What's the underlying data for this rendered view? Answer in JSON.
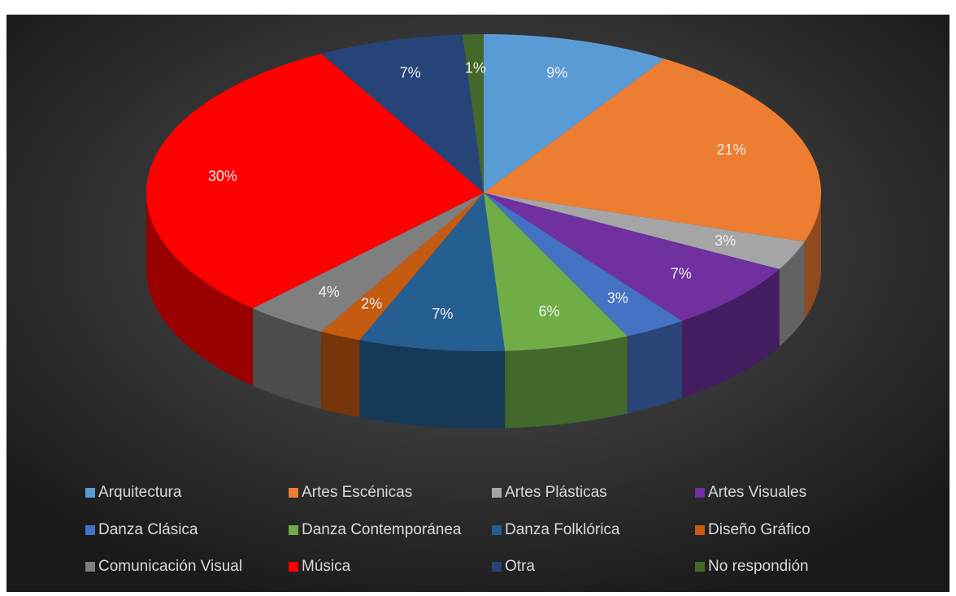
{
  "chart_data": {
    "type": "pie3d",
    "categories": [
      "Arquitectura",
      "Artes Escénicas",
      "Artes Plásticas",
      "Artes Visuales",
      "Danza Clásica",
      "Danza Contemporánea",
      "Danza Folklórica",
      "Diseño Gráfico",
      "Comunicación Visual",
      "Música",
      "Otra",
      "No respondión"
    ],
    "values": [
      9,
      21,
      3,
      7,
      3,
      6,
      7,
      2,
      4,
      30,
      7,
      1
    ],
    "value_labels": [
      "9%",
      "21%",
      "3%",
      "7%",
      "3%",
      "6%",
      "7%",
      "2%",
      "4%",
      "30%",
      "7%",
      "1%"
    ],
    "colors": [
      "#5b9bd5",
      "#ed7d31",
      "#a5a5a5",
      "#7030a0",
      "#4472c4",
      "#70ad47",
      "#255e91",
      "#c55a11",
      "#7f7f7f",
      "#ff0000",
      "#264478",
      "#43682b"
    ],
    "legend": "bottom"
  }
}
